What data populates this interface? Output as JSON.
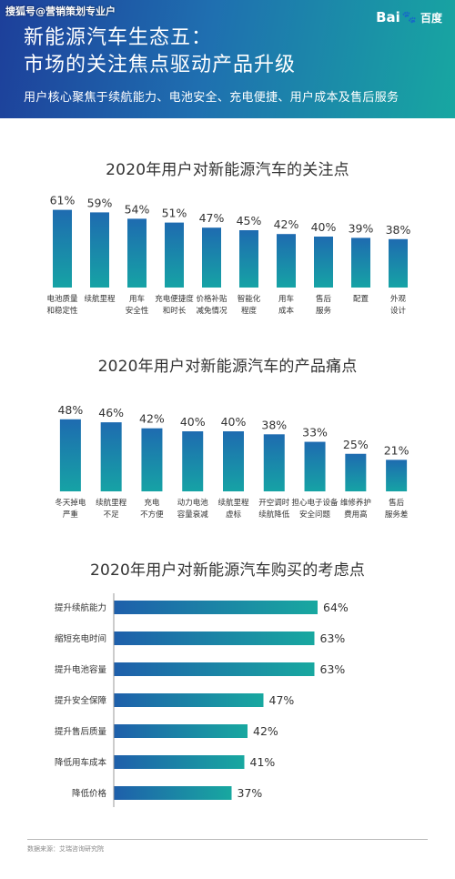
{
  "header": {
    "watermark": "搜狐号@营销策划专业户",
    "logo_text": "Bai",
    "logo_cn": "百度",
    "title_line1": "新能源汽车生态五：",
    "title_line2": "市场的关注焦点驱动产品升级",
    "subtitle": "用户核心聚焦于续航能力、电池安全、充电便捷、用户成本及售后服务",
    "gradient_start": "#1d3f9a",
    "gradient_end": "#17a7a1"
  },
  "chart_data": [
    {
      "type": "bar",
      "title": "2020年用户对新能源汽车的关注点",
      "categories": [
        [
          "电池质量",
          "和稳定性"
        ],
        [
          "续航里程"
        ],
        [
          "用车",
          "安全性"
        ],
        [
          "充电便捷度",
          "和时长"
        ],
        [
          "价格补贴",
          "减免情况"
        ],
        [
          "智能化",
          "程度"
        ],
        [
          "用车",
          "成本"
        ],
        [
          "售后",
          "服务"
        ],
        [
          "配置"
        ],
        [
          "外观",
          "设计"
        ]
      ],
      "values": [
        61,
        59,
        54,
        51,
        47,
        45,
        42,
        40,
        39,
        38
      ],
      "value_labels": [
        "61%",
        "59%",
        "54%",
        "51%",
        "47%",
        "45%",
        "42%",
        "40%",
        "39%",
        "38%"
      ],
      "unit": "%",
      "ylim": [
        0,
        100
      ],
      "color_top": "#1e6bb0",
      "color_bottom": "#16a3a5"
    },
    {
      "type": "bar",
      "title": "2020年用户对新能源汽车的产品痛点",
      "categories": [
        [
          "冬天掉电",
          "严重"
        ],
        [
          "续航里程",
          "不足"
        ],
        [
          "充电",
          "不方便"
        ],
        [
          "动力电池",
          "容量衰减"
        ],
        [
          "续航里程",
          "虚标"
        ],
        [
          "开空调时",
          "续航降低"
        ],
        [
          "担心电子设备",
          "安全问题"
        ],
        [
          "维修养护",
          "费用高"
        ],
        [
          "售后",
          "服务差"
        ]
      ],
      "values": [
        48,
        46,
        42,
        40,
        40,
        38,
        33,
        25,
        21
      ],
      "value_labels": [
        "48%",
        "46%",
        "42%",
        "40%",
        "40%",
        "38%",
        "33%",
        "25%",
        "21%"
      ],
      "unit": "%",
      "ylim": [
        0,
        100
      ],
      "color_top": "#1e6bb0",
      "color_bottom": "#16a3a5"
    },
    {
      "type": "bar",
      "orientation": "horizontal",
      "title": "2020年用户对新能源汽车购买的考虑点",
      "categories": [
        "提升续航能力",
        "缩短充电时间",
        "提升电池容量",
        "提升安全保障",
        "提升售后质量",
        "降低用车成本",
        "降低价格"
      ],
      "values": [
        64,
        63,
        63,
        47,
        42,
        41,
        37
      ],
      "value_labels": [
        "64%",
        "63%",
        "63%",
        "47%",
        "42%",
        "41%",
        "37%"
      ],
      "unit": "%",
      "xlim": [
        0,
        100
      ],
      "color_left": "#1e5fab",
      "color_right": "#18a8a0"
    }
  ],
  "footer": {
    "source": "数据来源：艾瑞咨询研究院"
  }
}
